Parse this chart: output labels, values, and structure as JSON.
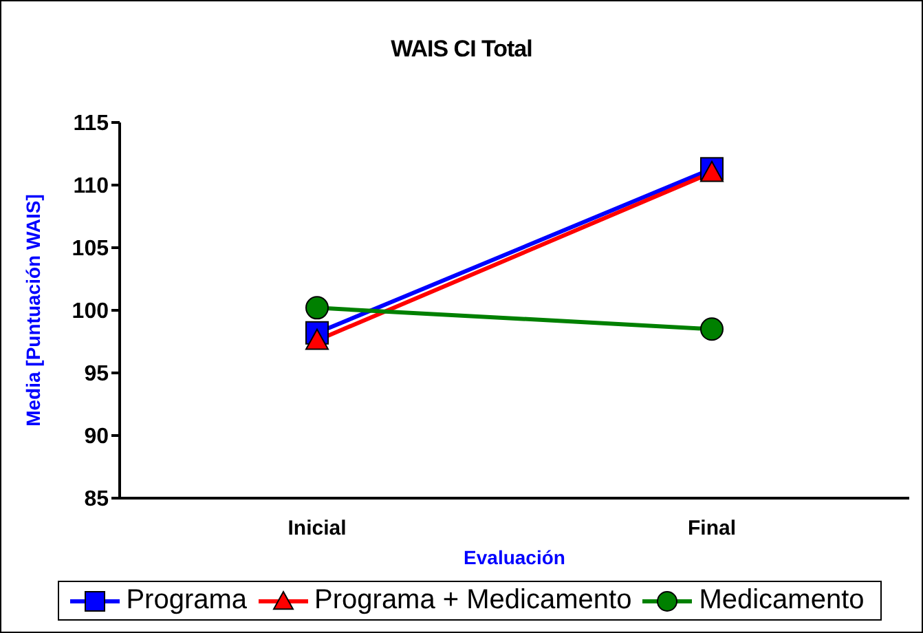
{
  "chart_data": {
    "type": "line",
    "title": "WAIS CI Total",
    "xlabel": "Evaluación",
    "ylabel": "Media [Puntuación WAIS]",
    "categories": [
      "Inicial",
      "Final"
    ],
    "series": [
      {
        "name": "Programa",
        "color": "#0000ff",
        "values": [
          98.2,
          111.3
        ],
        "marker": "square"
      },
      {
        "name": "Programa + Medicamento",
        "color": "#ff0000",
        "values": [
          97.6,
          111.0
        ],
        "marker": "triangle"
      },
      {
        "name": "Medicamento",
        "color": "#008000",
        "values": [
          100.2,
          98.5
        ],
        "marker": "circle"
      }
    ],
    "ylim": [
      85,
      115
    ],
    "yticks": [
      85,
      90,
      95,
      100,
      105,
      110,
      115
    ],
    "grid": false,
    "legend": "bottom"
  }
}
